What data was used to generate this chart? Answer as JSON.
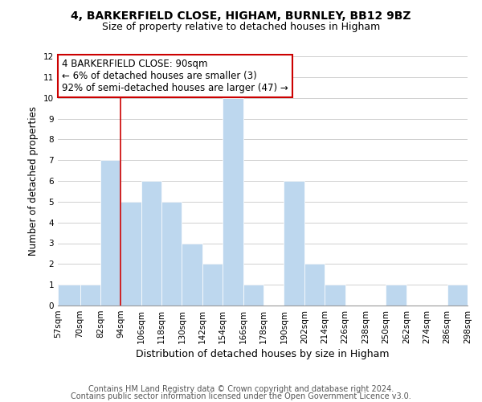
{
  "title": "4, BARKERFIELD CLOSE, HIGHAM, BURNLEY, BB12 9BZ",
  "subtitle": "Size of property relative to detached houses in Higham",
  "xlabel": "Distribution of detached houses by size in Higham",
  "ylabel": "Number of detached properties",
  "bar_edges": [
    57,
    70,
    82,
    94,
    106,
    118,
    130,
    142,
    154,
    166,
    178,
    190,
    202,
    214,
    226,
    238,
    250,
    262,
    274,
    286,
    298
  ],
  "bar_heights": [
    1,
    1,
    7,
    5,
    6,
    5,
    3,
    2,
    10,
    1,
    0,
    6,
    2,
    1,
    0,
    0,
    1,
    0,
    0,
    1
  ],
  "bar_color": "#bdd7ee",
  "bar_edge_color": "#ffffff",
  "grid_color": "#d0d0d0",
  "vline_x": 94,
  "vline_color": "#cc0000",
  "annotation_text": "4 BARKERFIELD CLOSE: 90sqm\n← 6% of detached houses are smaller (3)\n92% of semi-detached houses are larger (47) →",
  "annotation_box_edgecolor": "#cc0000",
  "ylim": [
    0,
    12
  ],
  "yticks": [
    0,
    1,
    2,
    3,
    4,
    5,
    6,
    7,
    8,
    9,
    10,
    11,
    12
  ],
  "tick_labels": [
    "57sqm",
    "70sqm",
    "82sqm",
    "94sqm",
    "106sqm",
    "118sqm",
    "130sqm",
    "142sqm",
    "154sqm",
    "166sqm",
    "178sqm",
    "190sqm",
    "202sqm",
    "214sqm",
    "226sqm",
    "238sqm",
    "250sqm",
    "262sqm",
    "274sqm",
    "286sqm",
    "298sqm"
  ],
  "footer1": "Contains HM Land Registry data © Crown copyright and database right 2024.",
  "footer2": "Contains public sector information licensed under the Open Government Licence v3.0.",
  "background_color": "#ffffff",
  "title_fontsize": 10,
  "subtitle_fontsize": 9,
  "xlabel_fontsize": 9,
  "ylabel_fontsize": 8.5,
  "tick_fontsize": 7.5,
  "annotation_fontsize": 8.5,
  "footer_fontsize": 7
}
